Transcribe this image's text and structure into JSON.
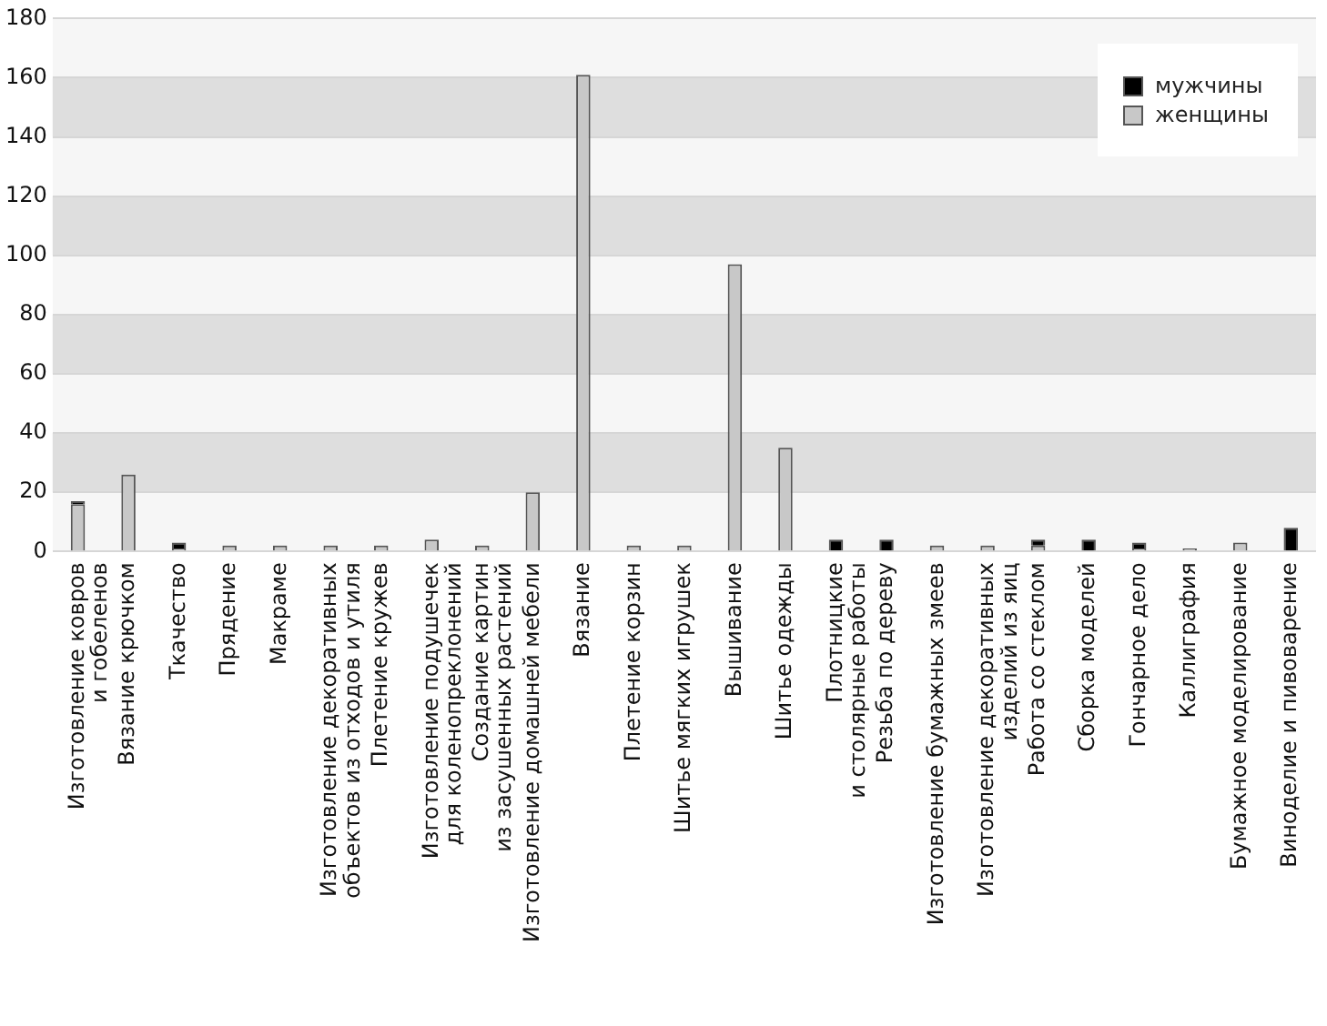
{
  "chart_data": {
    "type": "bar",
    "stacked": true,
    "categories": [
      "Изготовление ковров\nи гобеленов",
      "Вязание крючком",
      "Ткачество",
      "Прядение",
      "Макраме",
      "Изготовление декоративных\nобъектов из отходов и утиля",
      "Плетение кружев",
      "Изготовление подушечек\nдля коленопреклонений",
      "Создание картин\nиз засушенных растений",
      "Изготовление домашней мебели",
      "Вязание",
      "Плетение корзин",
      "Шитье мягких игрушек",
      "Вышивание",
      "Шитье одежды",
      "Плотницкие\nи столярные работы",
      "Резьба по дереву",
      "Изготовление бумажных змеев",
      "Изготовление декоративных\nизделий из яиц",
      "Работа со стеклом",
      "Сборка моделей",
      "Гончарное дело",
      "Каллиграфия",
      "Бумажное моделирование",
      "Виноделие и пивоварение"
    ],
    "series": [
      {
        "name": "женщины",
        "color": "#c8c8c8",
        "values": [
          16,
          26,
          1,
          2,
          2,
          2,
          2,
          4,
          2,
          20,
          161,
          2,
          2,
          97,
          35,
          0,
          0,
          2,
          2,
          2,
          0,
          1,
          1,
          3,
          0
        ]
      },
      {
        "name": "мужчины",
        "color": "#000000",
        "values": [
          1,
          0,
          2,
          0,
          0,
          0,
          0,
          0,
          0,
          0,
          0,
          0,
          0,
          0,
          0,
          4,
          4,
          0,
          0,
          2,
          4,
          2,
          0,
          0,
          8
        ]
      }
    ],
    "ylim": [
      0,
      180
    ],
    "yticks": [
      0,
      20,
      40,
      60,
      80,
      100,
      120,
      140,
      160,
      180
    ],
    "grid": true,
    "legend": "top right"
  }
}
